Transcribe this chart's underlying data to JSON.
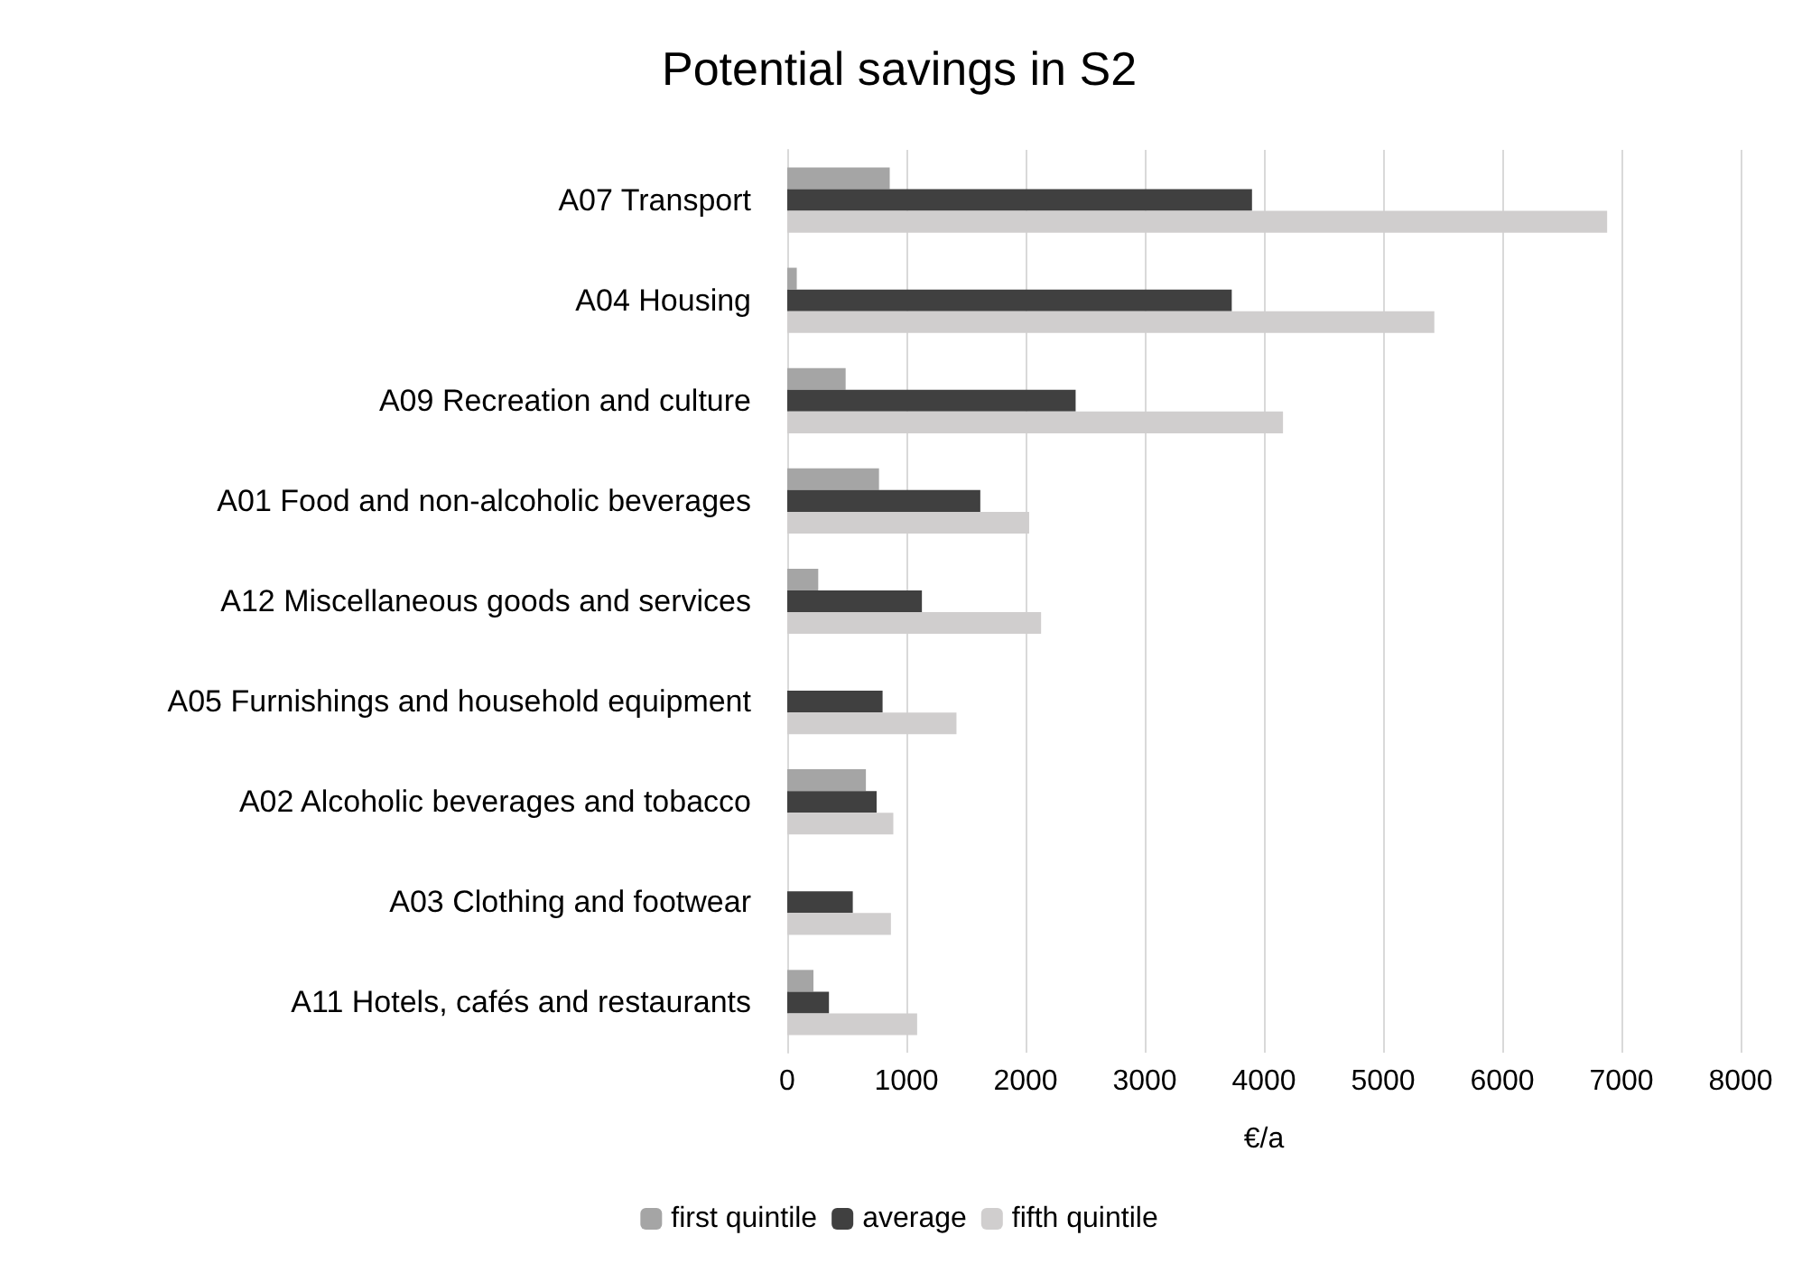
{
  "chart_data": {
    "type": "bar",
    "orientation": "horizontal",
    "title": "Potential savings in S2",
    "xlabel": "€/a",
    "categories": [
      "A07 Transport",
      "A04 Housing",
      "A09 Recreation and culture",
      "A01 Food and non-alcoholic beverages",
      "A12 Miscellaneous goods and services",
      "A05 Furnishings and household equipment",
      "A02 Alcoholic beverages and tobacco",
      "A03 Clothing and footwear",
      "A11 Hotels, cafés and restaurants"
    ],
    "series": [
      {
        "name": "first quintile",
        "color": "#a5a5a5",
        "values": [
          860,
          80,
          490,
          770,
          260,
          null,
          660,
          null,
          220
        ]
      },
      {
        "name": "average",
        "color": "#404040",
        "values": [
          3900,
          3730,
          2420,
          1620,
          1130,
          800,
          750,
          550,
          350
        ]
      },
      {
        "name": "fifth quintile",
        "color": "#d0cece",
        "values": [
          6880,
          5430,
          4160,
          2030,
          2130,
          1420,
          890,
          870,
          1090
        ]
      }
    ],
    "xlim": [
      0,
      8000
    ],
    "xticks": [
      0,
      1000,
      2000,
      3000,
      4000,
      5000,
      6000,
      7000,
      8000
    ],
    "grid": "x",
    "legend": "bottom"
  }
}
